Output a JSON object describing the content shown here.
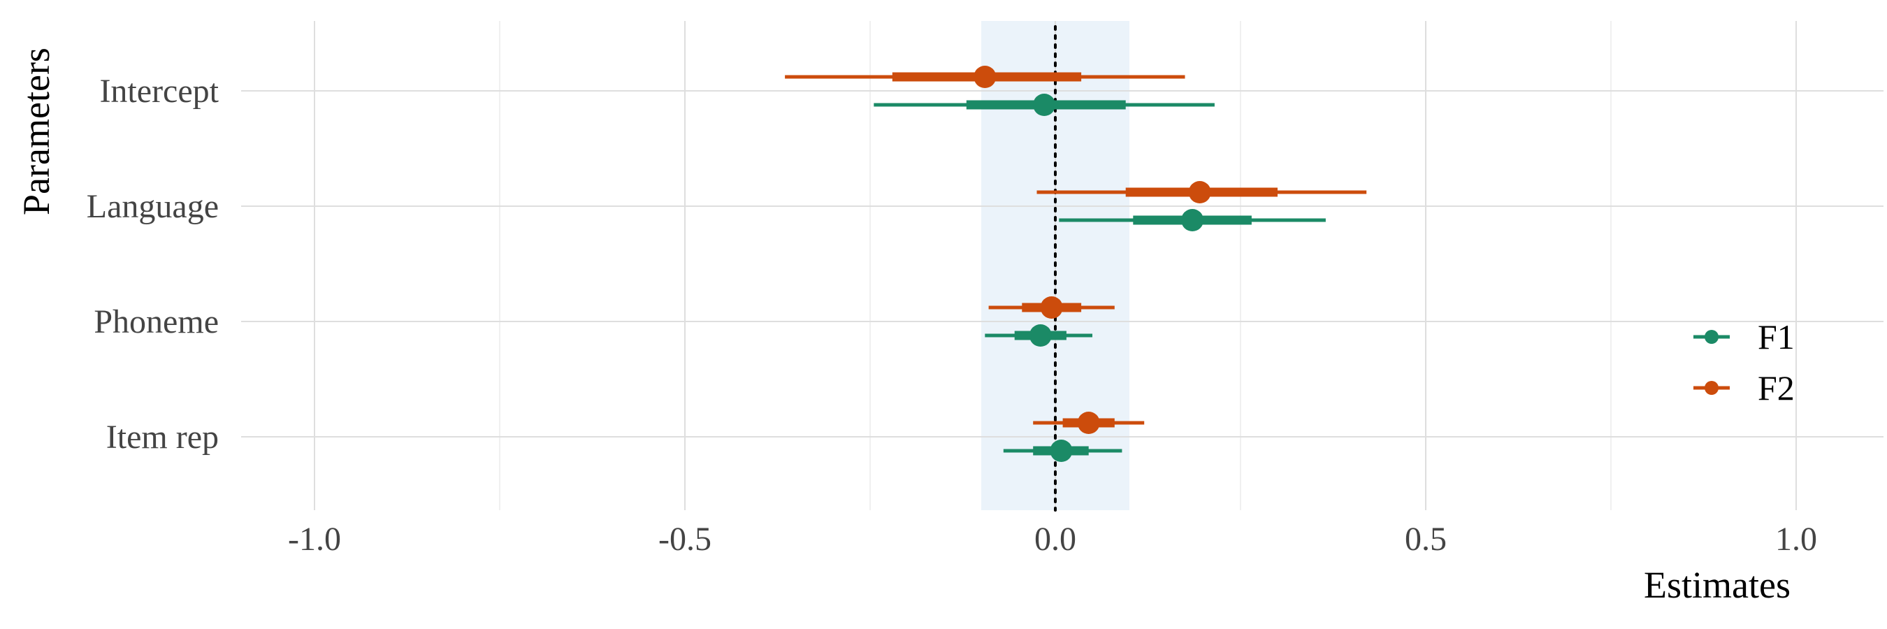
{
  "chart_data": {
    "type": "forest",
    "xlabel": "Estimates",
    "ylabel": "Parameters",
    "xlim": [
      -1.1,
      1.1
    ],
    "x_ticks": [
      -1.0,
      -0.5,
      0.0,
      0.5,
      1.0
    ],
    "x_tick_labels": [
      "-1.0",
      "-0.5",
      "0.0",
      "0.5",
      "1.0"
    ],
    "x_minor_ticks": [
      -0.75,
      -0.25,
      0.25,
      0.75
    ],
    "rope": [
      -0.1,
      0.1
    ],
    "reference_line": 0,
    "grid": true,
    "legend_position": "right",
    "categories": [
      "Intercept",
      "Language",
      "Phoneme",
      "Item rep"
    ],
    "series": [
      {
        "name": "F1",
        "color": "#1b8a66",
        "points": [
          {
            "category": "Intercept",
            "estimate": -0.015,
            "inner": [
              -0.12,
              0.095
            ],
            "outer": [
              -0.245,
              0.215
            ]
          },
          {
            "category": "Language",
            "estimate": 0.185,
            "inner": [
              0.105,
              0.265
            ],
            "outer": [
              0.005,
              0.365
            ]
          },
          {
            "category": "Phoneme",
            "estimate": -0.02,
            "inner": [
              -0.055,
              0.015
            ],
            "outer": [
              -0.095,
              0.05
            ]
          },
          {
            "category": "Item rep",
            "estimate": 0.008,
            "inner": [
              -0.03,
              0.045
            ],
            "outer": [
              -0.07,
              0.09
            ]
          }
        ]
      },
      {
        "name": "F2",
        "color": "#cc4c0c",
        "points": [
          {
            "category": "Intercept",
            "estimate": -0.095,
            "inner": [
              -0.22,
              0.035
            ],
            "outer": [
              -0.365,
              0.175
            ]
          },
          {
            "category": "Language",
            "estimate": 0.195,
            "inner": [
              0.095,
              0.3
            ],
            "outer": [
              -0.025,
              0.42
            ]
          },
          {
            "category": "Phoneme",
            "estimate": -0.005,
            "inner": [
              -0.045,
              0.035
            ],
            "outer": [
              -0.09,
              0.08
            ]
          },
          {
            "category": "Item rep",
            "estimate": 0.045,
            "inner": [
              0.01,
              0.08
            ],
            "outer": [
              -0.03,
              0.12
            ]
          }
        ]
      }
    ]
  }
}
